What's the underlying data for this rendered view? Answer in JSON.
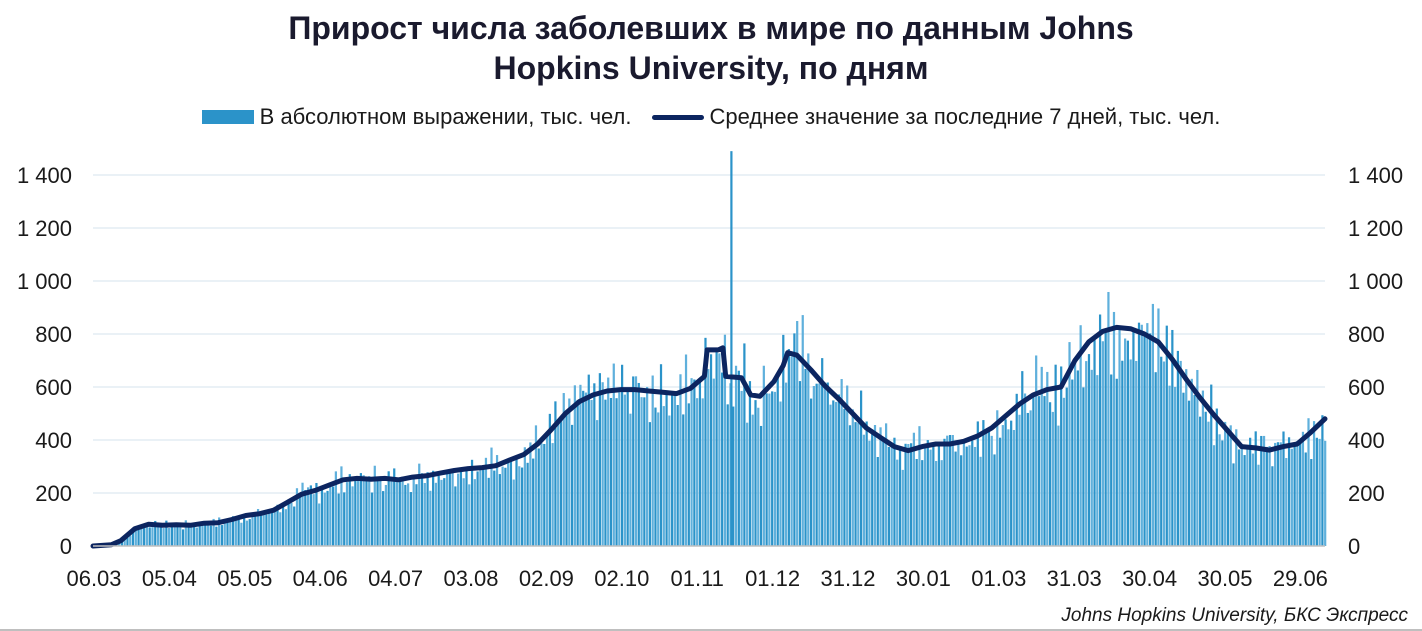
{
  "chart_data": {
    "type": "bar",
    "title_line1": "Прирост числа заболевших в мире по данным Johns",
    "title_line2": "Hopkins University, по дням",
    "series": [
      {
        "name": "В абсолютном выражении, тыс. чел.",
        "kind": "bar",
        "color": "#2b93c9"
      },
      {
        "name": "Среднее значение за последние 7 дней, тыс. чел.",
        "kind": "line",
        "color": "#0c2560"
      }
    ],
    "x_tick_labels": [
      "06.03",
      "05.04",
      "05.05",
      "04.06",
      "04.07",
      "03.08",
      "02.09",
      "02.10",
      "01.11",
      "01.12",
      "31.12",
      "30.01",
      "01.03",
      "31.03",
      "30.04",
      "30.05",
      "29.06"
    ],
    "y_tick_labels": [
      "0",
      "200",
      "400",
      "600",
      "800",
      "1 000",
      "1 200",
      "1 400"
    ],
    "ylim": [
      0,
      1400
    ],
    "grid": true,
    "legend_position": "top",
    "moving_average_7d": [
      {
        "day": 0,
        "value": 0
      },
      {
        "day": 20,
        "value": 5
      },
      {
        "day": 30,
        "value": 20
      },
      {
        "day": 45,
        "value": 65
      },
      {
        "day": 60,
        "value": 82
      },
      {
        "day": 75,
        "value": 78
      },
      {
        "day": 90,
        "value": 80
      },
      {
        "day": 105,
        "value": 78
      },
      {
        "day": 120,
        "value": 86
      },
      {
        "day": 135,
        "value": 88
      },
      {
        "day": 150,
        "value": 100
      },
      {
        "day": 165,
        "value": 115
      },
      {
        "day": 180,
        "value": 122
      },
      {
        "day": 195,
        "value": 135
      },
      {
        "day": 210,
        "value": 165
      },
      {
        "day": 225,
        "value": 195
      },
      {
        "day": 240,
        "value": 210
      },
      {
        "day": 255,
        "value": 230
      },
      {
        "day": 270,
        "value": 250
      },
      {
        "day": 285,
        "value": 255
      },
      {
        "day": 300,
        "value": 252
      },
      {
        "day": 315,
        "value": 255
      },
      {
        "day": 330,
        "value": 250
      },
      {
        "day": 345,
        "value": 260
      },
      {
        "day": 360,
        "value": 265
      },
      {
        "day": 375,
        "value": 275
      },
      {
        "day": 390,
        "value": 285
      },
      {
        "day": 405,
        "value": 292
      },
      {
        "day": 420,
        "value": 296
      },
      {
        "day": 435,
        "value": 303
      },
      {
        "day": 450,
        "value": 325
      },
      {
        "day": 465,
        "value": 345
      },
      {
        "day": 480,
        "value": 385
      },
      {
        "day": 495,
        "value": 440
      },
      {
        "day": 510,
        "value": 500
      },
      {
        "day": 525,
        "value": 545
      },
      {
        "day": 540,
        "value": 570
      },
      {
        "day": 555,
        "value": 585
      },
      {
        "day": 570,
        "value": 590
      },
      {
        "day": 585,
        "value": 590
      },
      {
        "day": 600,
        "value": 585
      },
      {
        "day": 615,
        "value": 580
      },
      {
        "day": 630,
        "value": 575
      },
      {
        "day": 645,
        "value": 595
      },
      {
        "day": 655,
        "value": 625
      },
      {
        "day": 660,
        "value": 640
      },
      {
        "day": 663,
        "value": 740
      },
      {
        "day": 675,
        "value": 740
      },
      {
        "day": 680,
        "value": 748
      },
      {
        "day": 683,
        "value": 640
      },
      {
        "day": 700,
        "value": 635
      },
      {
        "day": 710,
        "value": 570
      },
      {
        "day": 720,
        "value": 565
      },
      {
        "day": 735,
        "value": 620
      },
      {
        "day": 745,
        "value": 680
      },
      {
        "day": 750,
        "value": 730
      },
      {
        "day": 760,
        "value": 720
      },
      {
        "day": 775,
        "value": 665
      },
      {
        "day": 790,
        "value": 605
      },
      {
        "day": 805,
        "value": 555
      },
      {
        "day": 820,
        "value": 500
      },
      {
        "day": 835,
        "value": 445
      },
      {
        "day": 850,
        "value": 410
      },
      {
        "day": 865,
        "value": 375
      },
      {
        "day": 880,
        "value": 360
      },
      {
        "day": 895,
        "value": 375
      },
      {
        "day": 910,
        "value": 385
      },
      {
        "day": 925,
        "value": 385
      },
      {
        "day": 940,
        "value": 395
      },
      {
        "day": 955,
        "value": 415
      },
      {
        "day": 970,
        "value": 445
      },
      {
        "day": 985,
        "value": 490
      },
      {
        "day": 1000,
        "value": 535
      },
      {
        "day": 1015,
        "value": 570
      },
      {
        "day": 1030,
        "value": 590
      },
      {
        "day": 1045,
        "value": 600
      },
      {
        "day": 1060,
        "value": 700
      },
      {
        "day": 1075,
        "value": 770
      },
      {
        "day": 1090,
        "value": 810
      },
      {
        "day": 1105,
        "value": 825
      },
      {
        "day": 1120,
        "value": 820
      },
      {
        "day": 1135,
        "value": 800
      },
      {
        "day": 1150,
        "value": 770
      },
      {
        "day": 1165,
        "value": 705
      },
      {
        "day": 1180,
        "value": 630
      },
      {
        "day": 1195,
        "value": 560
      },
      {
        "day": 1210,
        "value": 495
      },
      {
        "day": 1225,
        "value": 435
      },
      {
        "day": 1240,
        "value": 375
      },
      {
        "day": 1255,
        "value": 370
      },
      {
        "day": 1270,
        "value": 362
      },
      {
        "day": 1285,
        "value": 375
      },
      {
        "day": 1300,
        "value": 385
      },
      {
        "day": 1315,
        "value": 430
      },
      {
        "day": 1330,
        "value": 480
      }
    ],
    "spike": {
      "day": 688,
      "value": 1490
    },
    "source": "Johns Hopkins University, БКС Экспресс"
  }
}
